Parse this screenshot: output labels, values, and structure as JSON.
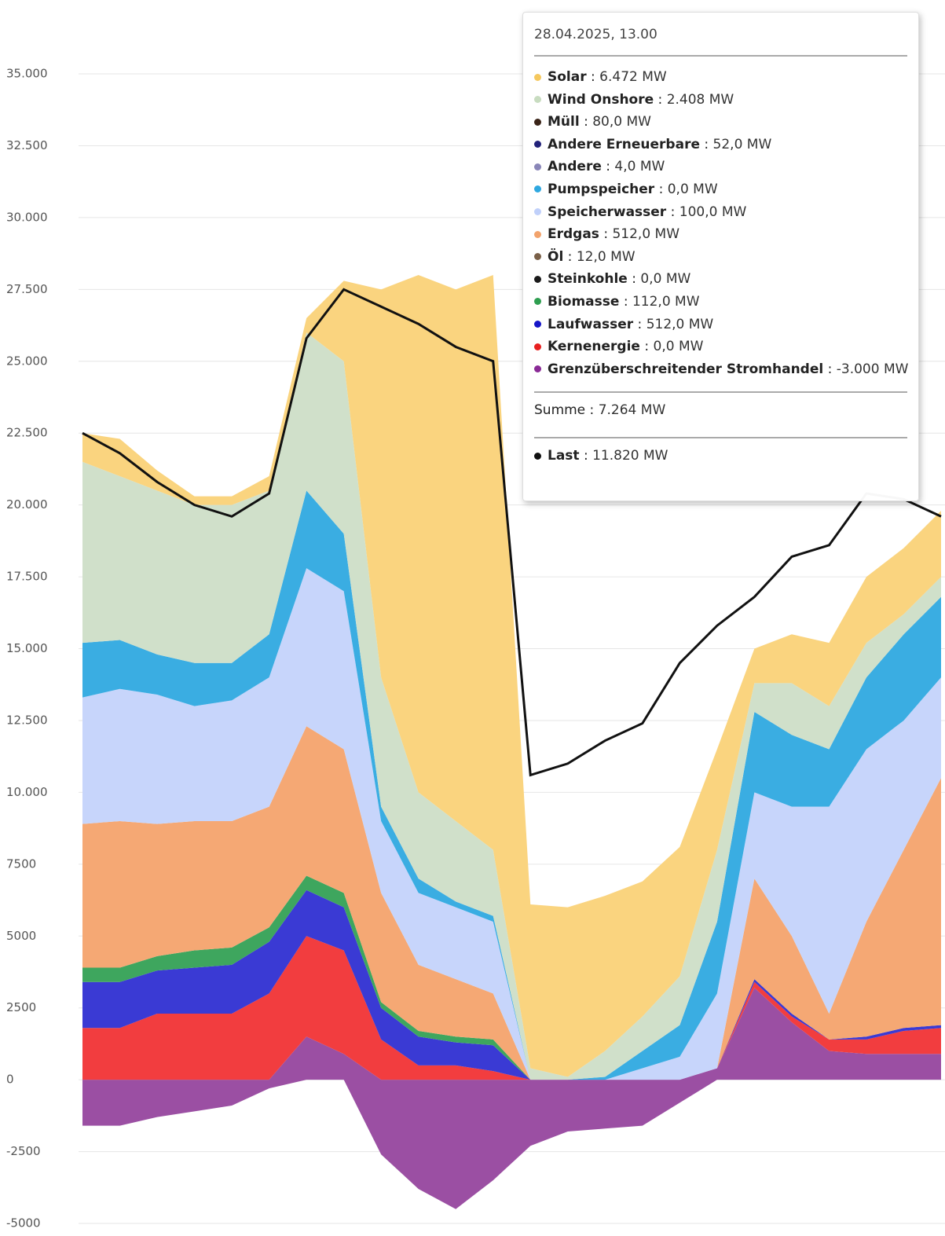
{
  "chart_data": {
    "type": "stacked_area",
    "ylim": [
      -5000,
      35000
    ],
    "yticks": [
      {
        "value": -5000,
        "label": "-5000"
      },
      {
        "value": -2500,
        "label": "-2500"
      },
      0,
      2500,
      5000,
      7500,
      {
        "value": 10000,
        "label": "10.000"
      },
      {
        "value": 12500,
        "label": "12.500"
      },
      {
        "value": 15000,
        "label": "15.000"
      },
      {
        "value": 17500,
        "label": "17.500"
      },
      {
        "value": 20000,
        "label": "20.000"
      },
      {
        "value": 22500,
        "label": "22.500"
      },
      {
        "value": 25000,
        "label": "25.000"
      },
      {
        "value": 27500,
        "label": "27.500"
      },
      {
        "value": 30000,
        "label": "30.000"
      },
      {
        "value": 32500,
        "label": "32.500"
      },
      {
        "value": 35000,
        "label": "35.000"
      }
    ],
    "grid": true,
    "series": [
      {
        "name": "Grenzüberschreitender Stromhandel",
        "color": "#9b4fa3",
        "values": [
          -1600,
          -1600,
          -1300,
          -1100,
          -900,
          -300,
          1500,
          900,
          -2600,
          -3800,
          -4500,
          -3500,
          -2300,
          -1800,
          -1700,
          -1600,
          -800,
          400,
          3200,
          2000,
          1000,
          900,
          900,
          900
        ]
      },
      {
        "name": "Kernenergie",
        "color": "#f23d3f",
        "values": [
          1800,
          1800,
          2300,
          2300,
          2300,
          3000,
          3500,
          3600,
          1400,
          500,
          500,
          300,
          0,
          0,
          0,
          0,
          0,
          0,
          200,
          200,
          400,
          500,
          800,
          900
        ]
      },
      {
        "name": "Laufwasser",
        "color": "#3a3ad4",
        "values": [
          1600,
          1600,
          1500,
          1600,
          1700,
          1800,
          1600,
          1500,
          1100,
          1000,
          800,
          900,
          0,
          0,
          0,
          0,
          0,
          0,
          100,
          100,
          0,
          100,
          100,
          100
        ]
      },
      {
        "name": "Biomasse",
        "color": "#3ea65e",
        "values": [
          500,
          500,
          500,
          600,
          600,
          500,
          500,
          500,
          200,
          200,
          200,
          200,
          0,
          0,
          0,
          0,
          0,
          0,
          0,
          0,
          0,
          0,
          0,
          0
        ]
      },
      {
        "name": "Erdgas",
        "color": "#f5a874",
        "values": [
          5000,
          5100,
          4600,
          4500,
          4400,
          4200,
          5200,
          5000,
          3800,
          2300,
          2000,
          1600,
          0,
          0,
          0,
          0,
          0,
          0,
          3500,
          2700,
          900,
          4000,
          6200,
          8600
        ]
      },
      {
        "name": "Speicherwasser",
        "color": "#c7d5fb",
        "values": [
          4400,
          4600,
          4500,
          4000,
          4200,
          4500,
          5500,
          5500,
          2500,
          2500,
          2500,
          2500,
          0,
          0,
          0,
          400,
          800,
          2600,
          3000,
          4500,
          7200,
          6000,
          4500,
          3500
        ]
      },
      {
        "name": "Pumpspeicher",
        "color": "#3aade2",
        "values": [
          1900,
          1700,
          1400,
          1500,
          1300,
          1500,
          2700,
          2000,
          500,
          500,
          200,
          200,
          0,
          0,
          100,
          600,
          1100,
          2500,
          2800,
          2500,
          2000,
          2500,
          3000,
          2800
        ]
      },
      {
        "name": "Wind Onshore",
        "color": "#d0e0ca",
        "values": [
          6300,
          5700,
          5700,
          5500,
          5500,
          5000,
          5500,
          6000,
          4500,
          3000,
          2800,
          2300,
          400,
          100,
          900,
          1200,
          1700,
          2500,
          1000,
          1800,
          1500,
          1200,
          700,
          700
        ]
      },
      {
        "name": "Solar",
        "color": "#fad47f",
        "values": [
          1000,
          1300,
          700,
          300,
          300,
          500,
          500,
          2800,
          13500,
          18000,
          18500,
          20000,
          5700,
          5900,
          5400,
          4700,
          4500,
          3500,
          1200,
          1700,
          2200,
          2300,
          2300,
          2300
        ]
      }
    ],
    "line": {
      "name": "Last",
      "color": "#111111",
      "values": [
        22500,
        21800,
        20800,
        20000,
        19600,
        20400,
        25800,
        27500,
        26900,
        26300,
        25500,
        25000,
        10600,
        11000,
        11800,
        12400,
        14500,
        15800,
        16800,
        18200,
        18600,
        20400,
        20200,
        19600
      ]
    }
  },
  "tooltip": {
    "title": "28.04.2025, 13.00",
    "items": [
      {
        "label": "Solar",
        "value": "6.472 MW",
        "color": "#f5c85e"
      },
      {
        "label": "Wind Onshore",
        "value": "2.408 MW",
        "color": "#c8dcc0"
      },
      {
        "label": "Müll",
        "value": "80,0 MW",
        "color": "#3a2418"
      },
      {
        "label": "Andere Erneuerbare",
        "value": "52,0 MW",
        "color": "#22227a"
      },
      {
        "label": "Andere",
        "value": "4,0 MW",
        "color": "#8a86b8"
      },
      {
        "label": "Pumpspeicher",
        "value": "0,0 MW",
        "color": "#2fa8e0"
      },
      {
        "label": "Speicherwasser",
        "value": "100,0 MW",
        "color": "#c0d0fa"
      },
      {
        "label": "Erdgas",
        "value": "512,0 MW",
        "color": "#f2a36c"
      },
      {
        "label": "Öl",
        "value": "12,0 MW",
        "color": "#7a6048"
      },
      {
        "label": "Steinkohle",
        "value": "0,0 MW",
        "color": "#1a1a1a"
      },
      {
        "label": "Biomasse",
        "value": "112,0 MW",
        "color": "#2e9e50"
      },
      {
        "label": "Laufwasser",
        "value": "512,0 MW",
        "color": "#1616c8"
      },
      {
        "label": "Kernenergie",
        "value": "0,0 MW",
        "color": "#e82020"
      },
      {
        "label": "Grenzüberschreitender Stromhandel",
        "value": "-3.000 MW",
        "color": "#8a2a96"
      }
    ],
    "sum": {
      "label": "Summe",
      "value": "7.264 MW"
    },
    "last": {
      "label": "Last",
      "value": "11.820 MW",
      "color": "#111111"
    }
  }
}
